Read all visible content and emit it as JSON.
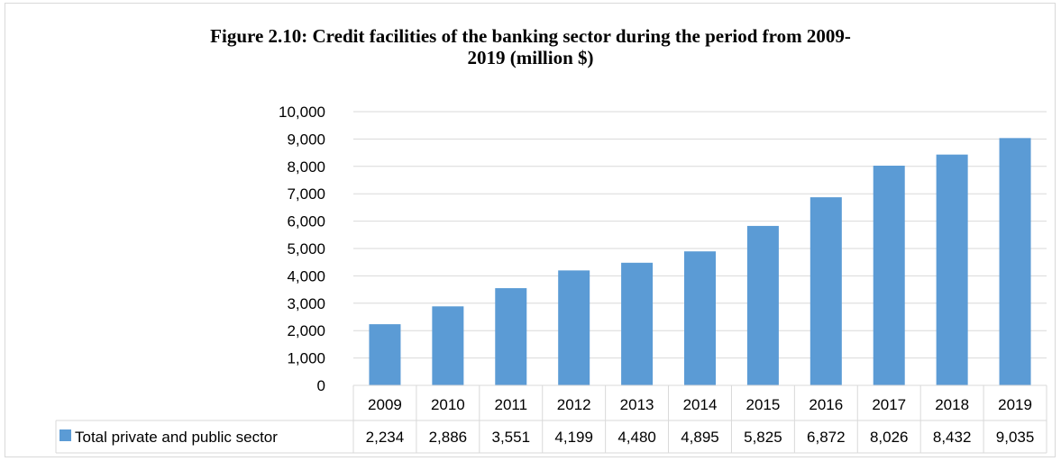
{
  "chart_data": {
    "type": "bar",
    "title_lines": [
      "Figure 2.10: Credit facilities of the banking sector during the period from 2009-",
      "2019 (million $)"
    ],
    "categories": [
      "2009",
      "2010",
      "2011",
      "2012",
      "2013",
      "2014",
      "2015",
      "2016",
      "2017",
      "2018",
      "2019"
    ],
    "series": [
      {
        "name": "Total private and public sector",
        "values": [
          2234,
          2886,
          3551,
          4199,
          4480,
          4895,
          5825,
          6872,
          8026,
          8432,
          9035
        ],
        "value_labels": [
          "2,234",
          "2,886",
          "3,551",
          "4,199",
          "4,480",
          "4,895",
          "5,825",
          "6,872",
          "8,026",
          "8,432",
          "9,035"
        ],
        "color": "#5b9bd5"
      }
    ],
    "ylim": [
      0,
      10000
    ],
    "ytick_labels": [
      "0",
      "1,000",
      "2,000",
      "3,000",
      "4,000",
      "5,000",
      "6,000",
      "7,000",
      "8,000",
      "9,000",
      "10,000"
    ],
    "grid": true,
    "data_table": true,
    "gridline_color": "#d9d9d9"
  }
}
